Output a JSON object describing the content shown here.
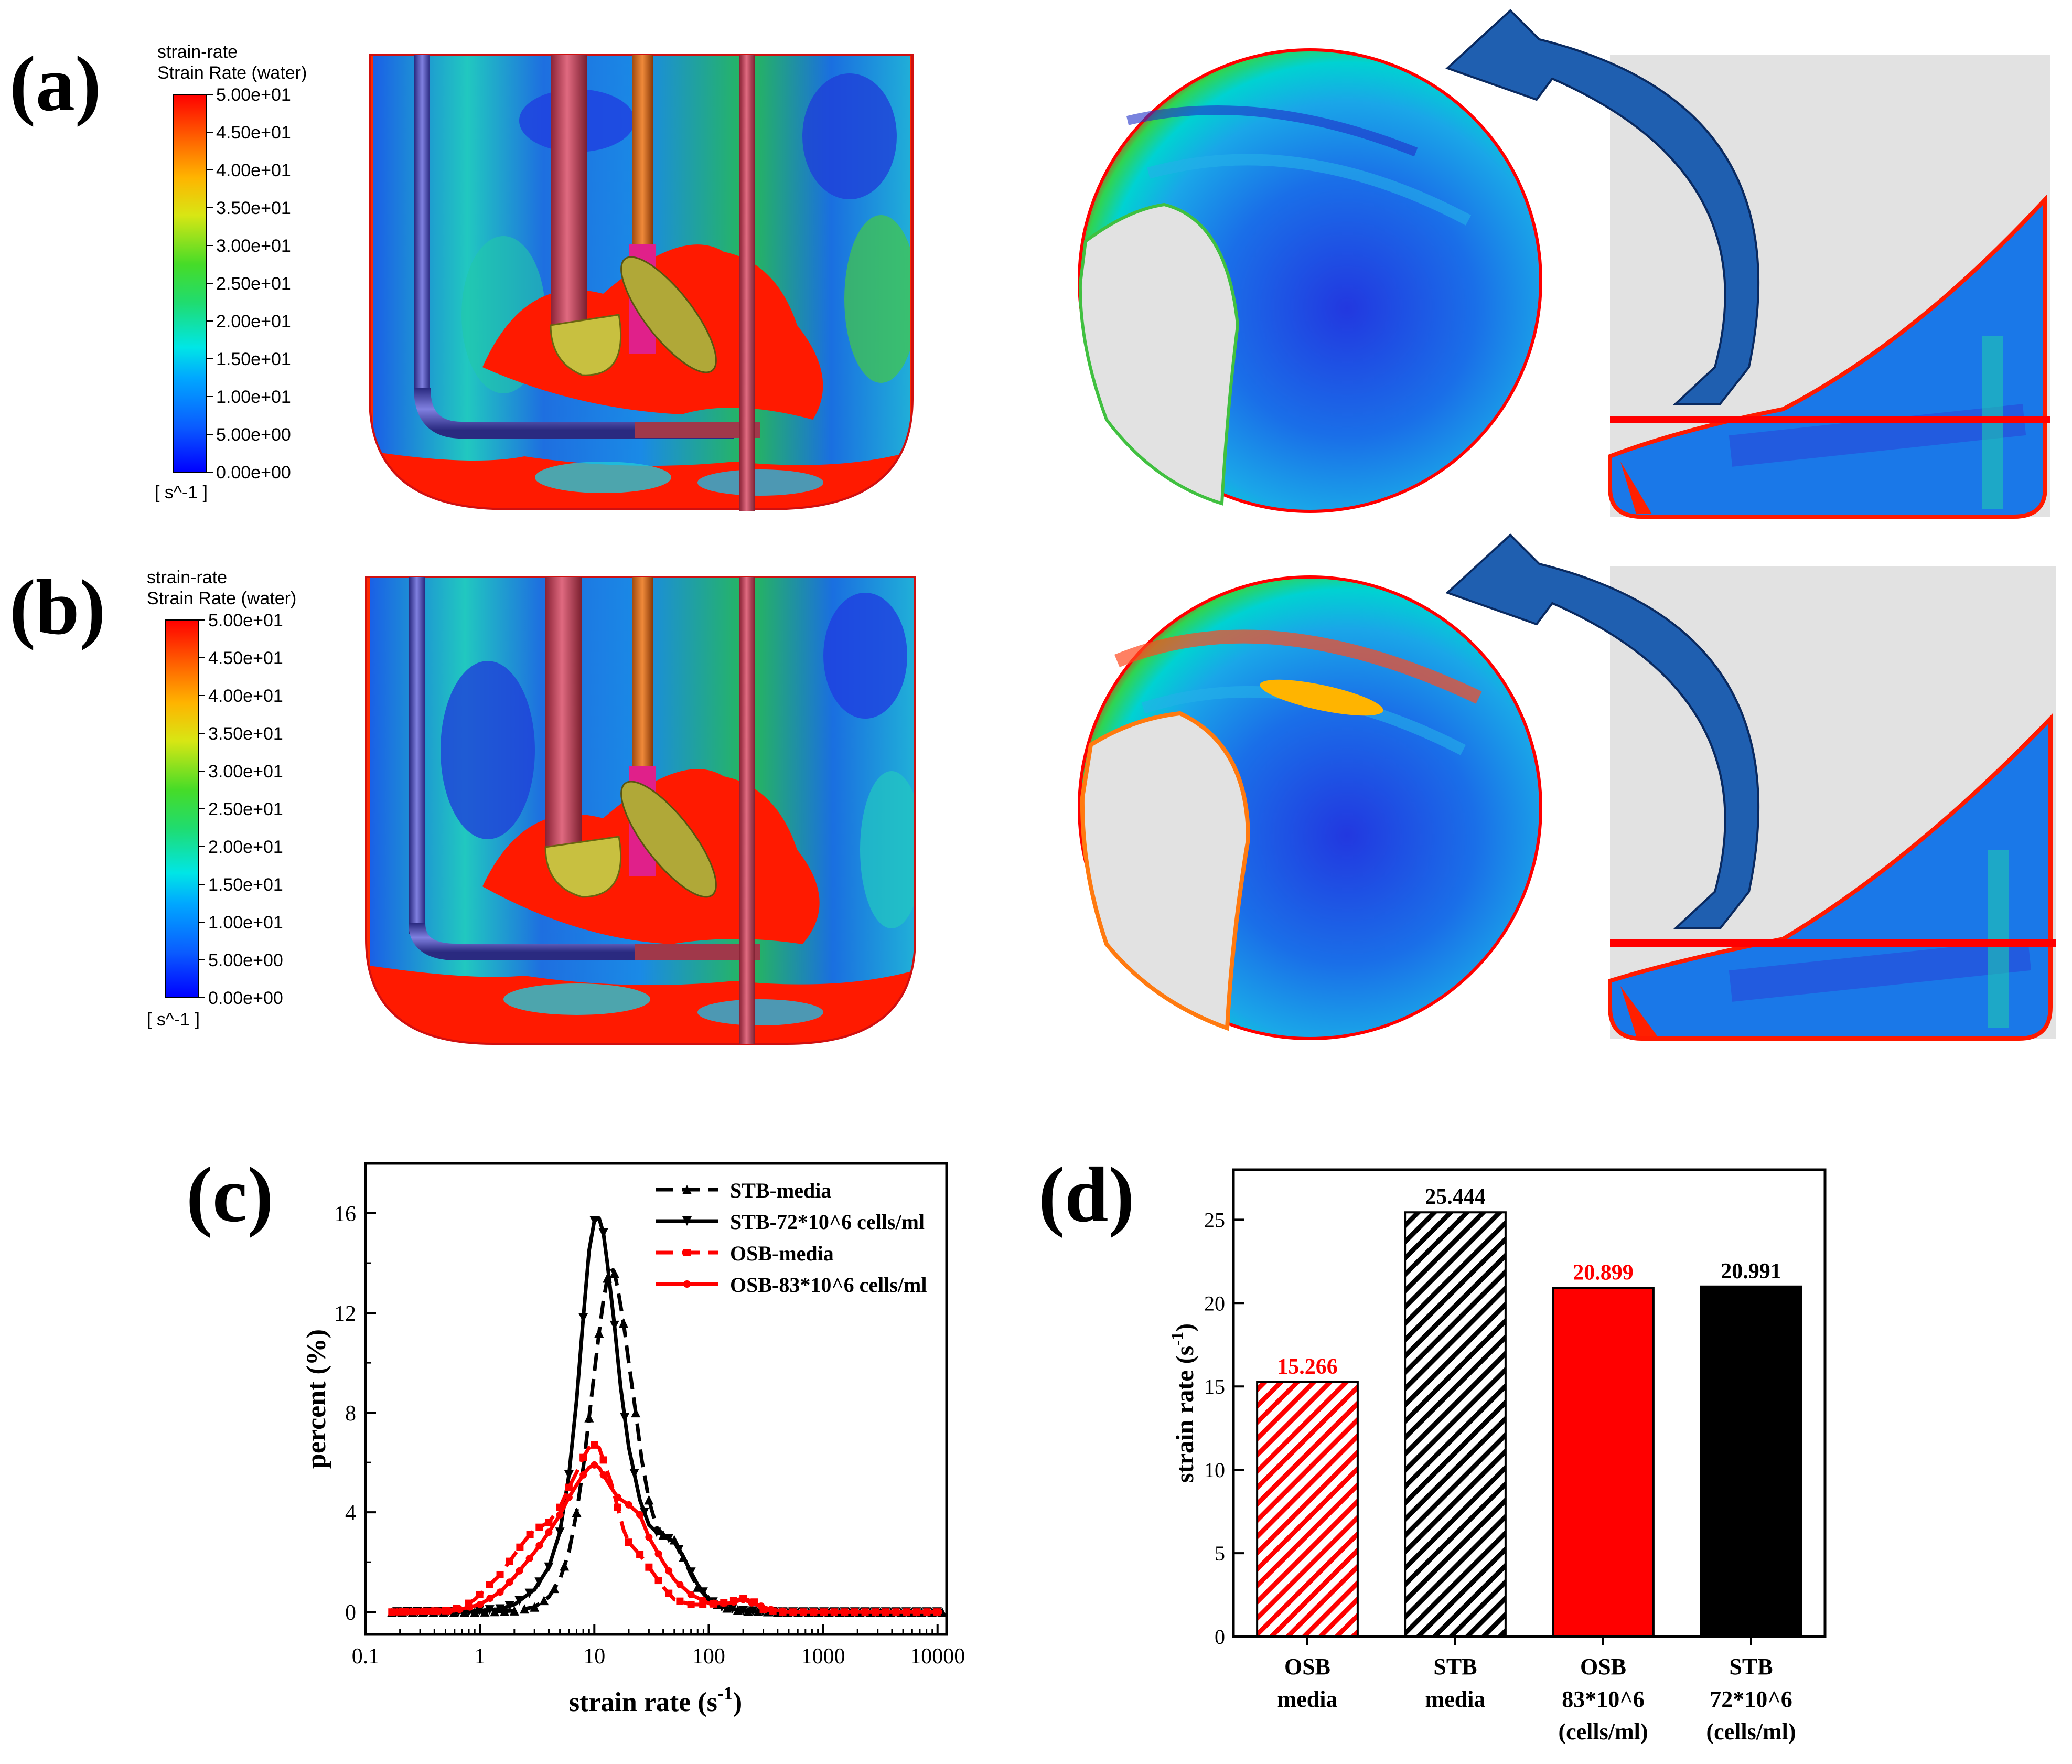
{
  "panels": {
    "a": {
      "label": "(a)",
      "colorbar": {
        "title_line1": "strain-rate",
        "title_line2": "Strain Rate (water)",
        "ticks": [
          "5.00e+01",
          "4.50e+01",
          "4.00e+01",
          "3.50e+01",
          "3.00e+01",
          "2.50e+01",
          "2.00e+01",
          "1.50e+01",
          "1.00e+01",
          "5.00e+00",
          "0.00e+00"
        ],
        "unit": "[ s^-1 ]"
      }
    },
    "b": {
      "label": "(b)",
      "colorbar": {
        "title_line1": "strain-rate",
        "title_line2": "Strain Rate (water)",
        "ticks": [
          "5.00e+01",
          "4.50e+01",
          "4.00e+01",
          "3.50e+01",
          "3.00e+01",
          "2.50e+01",
          "2.00e+01",
          "1.50e+01",
          "1.00e+01",
          "5.00e+00",
          "0.00e+00"
        ],
        "unit": "[ s^-1 ]"
      }
    },
    "c": {
      "label": "(c)"
    },
    "d": {
      "label": "(d)"
    }
  },
  "colors": {
    "colormap": [
      "#0000ff",
      "#0a6cff",
      "#00c8ff",
      "#00e6b4",
      "#3cdc3c",
      "#a0e61e",
      "#e6e614",
      "#ffb400",
      "#ff6400",
      "#ff0000"
    ],
    "stb": "#000000",
    "osb": "#ff0000",
    "arrow": "#1f5fb0",
    "gray_region": "#e2e2e2",
    "cut_line": "#ff0000"
  },
  "chart_data": [
    {
      "type": "line",
      "panel": "c",
      "xlabel": "strain rate (s",
      "xlabel_sup": "-1",
      "xlabel_end": ")",
      "ylabel": "percent (%)",
      "x_scale": "log",
      "xlim": [
        0.1,
        12000
      ],
      "ylim": [
        -0.9,
        18
      ],
      "x_ticks": [
        0.1,
        1,
        10,
        100,
        1000,
        10000
      ],
      "x_tick_labels": [
        "0.1",
        "1",
        "10",
        "100",
        "1000",
        "10000"
      ],
      "y_ticks": [
        0,
        4,
        8,
        12,
        16
      ],
      "y_tick_labels": [
        "0",
        "4",
        "8",
        "12",
        "16"
      ],
      "legend": "top-right",
      "series": [
        {
          "name": "STB-media",
          "color": "#000000",
          "style": "dashed",
          "marker": "triangle-up",
          "points": [
            [
              0.17,
              0
            ],
            [
              1,
              0
            ],
            [
              2,
              0.05
            ],
            [
              3,
              0.2
            ],
            [
              4,
              0.6
            ],
            [
              5,
              1.3
            ],
            [
              6,
              2.4
            ],
            [
              7,
              4
            ],
            [
              8,
              5.8
            ],
            [
              9,
              7.8
            ],
            [
              10,
              9.6
            ],
            [
              11,
              11.2
            ],
            [
              12,
              12.5
            ],
            [
              13,
              13.4
            ],
            [
              14,
              13.8
            ],
            [
              15,
              13.6
            ],
            [
              16,
              13
            ],
            [
              18,
              11.6
            ],
            [
              20,
              10
            ],
            [
              23,
              8
            ],
            [
              26,
              6.1
            ],
            [
              30,
              4.5
            ],
            [
              35,
              3.4
            ],
            [
              40,
              3.1
            ],
            [
              45,
              3
            ],
            [
              50,
              2.9
            ],
            [
              60,
              2.2
            ],
            [
              70,
              1.5
            ],
            [
              80,
              1
            ],
            [
              100,
              0.5
            ],
            [
              130,
              0.2
            ],
            [
              200,
              0.05
            ],
            [
              400,
              0
            ],
            [
              11000,
              0
            ]
          ]
        },
        {
          "name": "STB-72*10^6 cells/ml",
          "color": "#000000",
          "style": "solid",
          "marker": "triangle-down",
          "points": [
            [
              0.17,
              0
            ],
            [
              0.8,
              0.02
            ],
            [
              1.5,
              0.12
            ],
            [
              2,
              0.3
            ],
            [
              3,
              0.9
            ],
            [
              4,
              1.8
            ],
            [
              5,
              3.2
            ],
            [
              6,
              5.5
            ],
            [
              7,
              8.5
            ],
            [
              8,
              11.8
            ],
            [
              9,
              14.5
            ],
            [
              10,
              15.7
            ],
            [
              11,
              15.8
            ],
            [
              12,
              15.2
            ],
            [
              13,
              14
            ],
            [
              15,
              11.5
            ],
            [
              17,
              9
            ],
            [
              20,
              6.6
            ],
            [
              25,
              4.5
            ],
            [
              30,
              3.5
            ],
            [
              35,
              3.2
            ],
            [
              40,
              3.1
            ],
            [
              50,
              2.8
            ],
            [
              60,
              2.2
            ],
            [
              70,
              1.6
            ],
            [
              80,
              1.1
            ],
            [
              100,
              0.5
            ],
            [
              130,
              0.2
            ],
            [
              200,
              0.05
            ],
            [
              400,
              0
            ],
            [
              11000,
              0
            ]
          ]
        },
        {
          "name": "OSB-media",
          "color": "#ff0000",
          "style": "dashed",
          "marker": "square",
          "points": [
            [
              0.17,
              0
            ],
            [
              0.5,
              0.05
            ],
            [
              0.7,
              0.2
            ],
            [
              0.9,
              0.5
            ],
            [
              1.1,
              0.9
            ],
            [
              1.5,
              1.5
            ],
            [
              2,
              2.3
            ],
            [
              2.5,
              2.9
            ],
            [
              3,
              3.3
            ],
            [
              4,
              3.6
            ],
            [
              5,
              4.2
            ],
            [
              6,
              5
            ],
            [
              7,
              5.6
            ],
            [
              8,
              6.2
            ],
            [
              9,
              6.6
            ],
            [
              10,
              6.7
            ],
            [
              11,
              6.6
            ],
            [
              12,
              6.1
            ],
            [
              14,
              5.2
            ],
            [
              16,
              4.2
            ],
            [
              18,
              3.3
            ],
            [
              20,
              2.8
            ],
            [
              25,
              2.3
            ],
            [
              30,
              1.8
            ],
            [
              40,
              1
            ],
            [
              50,
              0.5
            ],
            [
              70,
              0.3
            ],
            [
              100,
              0.3
            ],
            [
              150,
              0.4
            ],
            [
              200,
              0.55
            ],
            [
              250,
              0.4
            ],
            [
              300,
              0.1
            ],
            [
              400,
              0
            ],
            [
              11000,
              0
            ]
          ]
        },
        {
          "name": "OSB-83*10^6 cells/ml",
          "color": "#ff0000",
          "style": "solid",
          "marker": "circle",
          "points": [
            [
              0.17,
              0
            ],
            [
              0.6,
              0.05
            ],
            [
              1,
              0.3
            ],
            [
              1.5,
              0.8
            ],
            [
              2,
              1.4
            ],
            [
              3,
              2.4
            ],
            [
              4,
              3.2
            ],
            [
              5,
              3.9
            ],
            [
              6,
              4.6
            ],
            [
              7,
              5.1
            ],
            [
              8,
              5.5
            ],
            [
              9,
              5.8
            ],
            [
              10,
              5.9
            ],
            [
              11,
              5.8
            ],
            [
              12,
              5.5
            ],
            [
              14,
              5
            ],
            [
              16,
              4.6
            ],
            [
              20,
              4.3
            ],
            [
              25,
              3.9
            ],
            [
              30,
              3
            ],
            [
              40,
              2
            ],
            [
              50,
              1.3
            ],
            [
              70,
              0.7
            ],
            [
              100,
              0.35
            ],
            [
              150,
              0.35
            ],
            [
              200,
              0.5
            ],
            [
              260,
              0.3
            ],
            [
              350,
              0.1
            ],
            [
              500,
              0
            ],
            [
              11000,
              0
            ]
          ]
        }
      ]
    },
    {
      "type": "bar",
      "panel": "d",
      "ylabel": "strain rate (s",
      "ylabel_sup": "-1",
      "ylabel_end": ")",
      "ylim": [
        0,
        28
      ],
      "y_ticks": [
        0,
        5,
        10,
        15,
        20,
        25
      ],
      "y_tick_labels": [
        "0",
        "5",
        "10",
        "15",
        "20",
        "25"
      ],
      "categories": [
        [
          "OSB",
          "media"
        ],
        [
          "STB",
          "media"
        ],
        [
          "OSB",
          "83*10^6",
          "(cells/ml)"
        ],
        [
          "STB",
          "72*10^6",
          "(cells/ml)"
        ]
      ],
      "values": [
        15.266,
        25.444,
        20.899,
        20.991
      ],
      "value_labels": [
        "15.266",
        "25.444",
        "20.899",
        "20.991"
      ],
      "bar_colors": [
        "#ff0000",
        "#000000",
        "#ff0000",
        "#000000"
      ],
      "bar_fills": [
        "hatch",
        "hatch",
        "solid",
        "solid"
      ],
      "label_colors": [
        "#ff0000",
        "#000000",
        "#ff0000",
        "#000000"
      ]
    }
  ]
}
